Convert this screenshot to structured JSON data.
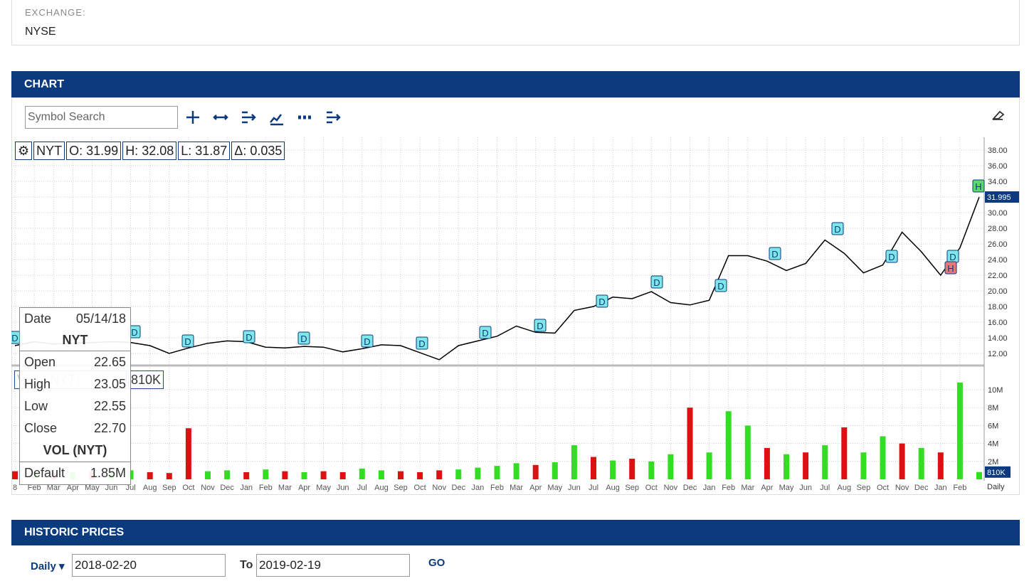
{
  "exchange": {
    "label": "EXCHANGE:",
    "value": "NYSE"
  },
  "chart_section": {
    "title": "CHART",
    "search_placeholder": "Symbol Search"
  },
  "info_bar": {
    "open": "O: 31.99",
    "high": "H: 32.08",
    "low": "L: 31.87",
    "change": "Δ: 0.035"
  },
  "tooltip": {
    "date_label": "Date",
    "date": "05/14/18",
    "rows": [
      [
        "Open",
        "22.65"
      ],
      [
        "High",
        "23.05"
      ],
      [
        "Low",
        "22.55"
      ],
      [
        "Close",
        "22.70"
      ]
    ],
    "volume_row": [
      "Default",
      "1.85M"
    ]
  },
  "events": [
    "D",
    "D",
    "D",
    "D",
    "D",
    "D",
    "D",
    "D",
    "D",
    "D",
    "D",
    "D",
    "D",
    "D",
    "D",
    "D",
    "H",
    "H"
  ],
  "chart_data": {
    "type": "line",
    "categories": [
      "8",
      "Feb",
      "Mar",
      "Apr",
      "May",
      "Jun",
      "Jul",
      "Aug",
      "Sep",
      "Oct",
      "Nov",
      "Dec",
      "Jan",
      "Feb",
      "Mar",
      "Apr",
      "May",
      "Jun",
      "Jul",
      "Aug",
      "Sep",
      "Oct",
      "Nov",
      "Dec",
      "Jan",
      "Feb",
      "Mar",
      "Apr",
      "May",
      "Jun",
      "Jul",
      "Aug",
      "Sep",
      "Oct",
      "Nov",
      "Dec",
      "Jan",
      "Feb",
      "Mar",
      "Apr",
      "May",
      "Jun",
      "Jul",
      "Aug",
      "Sep",
      "Oct",
      "Nov",
      "Dec",
      "Jan",
      "Feb",
      null
    ],
    "series": [
      {
        "name": "NYT",
        "color": "#000000",
        "values": [
          13.0,
          13.5,
          13.2,
          13.3,
          13.4,
          13.5,
          13.4,
          13.0,
          12.0,
          12.7,
          13.3,
          13.6,
          13.5,
          12.8,
          12.7,
          12.9,
          12.8,
          12.2,
          12.6,
          13.1,
          13.0,
          12.1,
          11.2,
          13.0,
          13.6,
          14.2,
          15.5,
          14.7,
          14.6,
          17.5,
          18.0,
          19.2,
          19.0,
          19.9,
          18.5,
          18.2,
          18.8,
          24.5,
          24.5,
          23.8,
          22.6,
          23.5,
          26.5,
          24.8,
          22.3,
          23.3,
          27.5,
          25.0,
          22.0,
          25.5,
          31.995
        ]
      },
      {
        "name": "VOL (NYT)",
        "type": "bar",
        "axis": "y2",
        "values": [
          0.9,
          0.8,
          0.7,
          0.8,
          0.9,
          0.8,
          1.0,
          0.8,
          0.7,
          5.7,
          0.9,
          1.0,
          0.8,
          1.1,
          0.9,
          0.8,
          0.9,
          0.8,
          1.2,
          1.0,
          0.9,
          0.8,
          1.0,
          1.1,
          1.3,
          1.5,
          1.8,
          1.6,
          1.9,
          3.8,
          2.5,
          2.1,
          2.3,
          2.0,
          2.8,
          8.0,
          3.0,
          7.6,
          6.0,
          3.5,
          2.8,
          3.0,
          3.8,
          5.8,
          3.0,
          4.8,
          4.0,
          3.5,
          3.0,
          10.8,
          0.81
        ],
        "value_labels": [
          null,
          null,
          null,
          null,
          null,
          null,
          null,
          null,
          null,
          null,
          null,
          null,
          null,
          null,
          null,
          null,
          null,
          null,
          null,
          null,
          null,
          null,
          null,
          null,
          null,
          null,
          null,
          null,
          null,
          null,
          null,
          null,
          null,
          null,
          null,
          null,
          null,
          null,
          null,
          null,
          null,
          null,
          null,
          null,
          null,
          null,
          null,
          null,
          null,
          null,
          "810K"
        ],
        "colors": [
          "#dd1111",
          "#33dd22",
          "#dd1111",
          "#33dd22",
          "#dd1111",
          "#33dd22",
          "#33dd22",
          "#dd1111",
          "#dd1111",
          "#dd1111",
          "#33dd22",
          "#33dd22",
          "#dd1111",
          "#33dd22",
          "#dd1111",
          "#33dd22",
          "#dd1111",
          "#dd1111",
          "#33dd22",
          "#33dd22",
          "#dd1111",
          "#dd1111",
          "#dd1111",
          "#33dd22",
          "#33dd22",
          "#33dd22",
          "#33dd22",
          "#dd1111",
          "#33dd22",
          "#33dd22",
          "#dd1111",
          "#33dd22",
          "#dd1111",
          "#33dd22",
          "#33dd22",
          "#dd1111",
          "#33dd22",
          "#33dd22",
          "#33dd22",
          "#dd1111",
          "#33dd22",
          "#dd1111",
          "#33dd22",
          "#dd1111",
          "#33dd22",
          "#33dd22",
          "#dd1111",
          "#33dd22",
          "#dd1111",
          "#33dd22",
          "#33dd22"
        ]
      }
    ],
    "ylim": [
      11,
      39.5
    ],
    "yticks": [
      {
        "value": 12,
        "label": "12.00"
      },
      {
        "value": 14,
        "label": "14.00"
      },
      {
        "value": 16,
        "label": "16.00"
      },
      {
        "value": 18,
        "label": "18.00"
      },
      {
        "value": 20,
        "label": "20.00"
      },
      {
        "value": 22,
        "label": "22.00"
      },
      {
        "value": 24,
        "label": "24.00"
      },
      {
        "value": 26,
        "label": "26.00"
      },
      {
        "value": 28,
        "label": "28.00"
      },
      {
        "value": 30,
        "label": "30.00"
      },
      {
        "value": 32,
        "label": "32.00"
      },
      {
        "value": 34,
        "label": "34.00"
      },
      {
        "value": 36,
        "label": "36.00"
      },
      {
        "value": 38,
        "label": "38.00"
      }
    ],
    "y2lim": [
      0,
      12
    ],
    "y2ticks": [
      {
        "value": 2,
        "label": "2M"
      },
      {
        "value": 4,
        "label": "4M"
      },
      {
        "value": 6,
        "label": "6M"
      },
      {
        "value": 8,
        "label": "8M"
      },
      {
        "value": 10,
        "label": "10M"
      }
    ],
    "grid": true,
    "interval": "Daily"
  },
  "historic": {
    "title": "HISTORIC PRICES",
    "interval": "Daily",
    "from": "2018-02-20",
    "to_label": "To",
    "to": "2019-02-19",
    "button": "GO"
  }
}
